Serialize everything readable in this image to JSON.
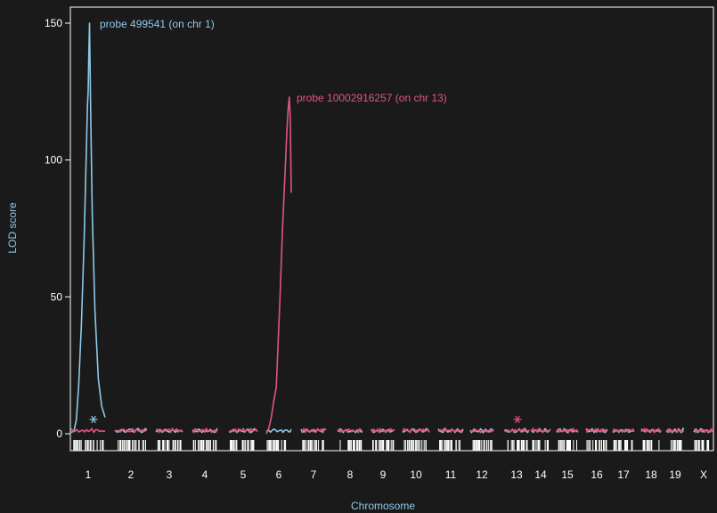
{
  "chart_data": {
    "type": "line",
    "xlabel": "Chromosome",
    "ylabel": "LOD score",
    "ylim": [
      -3,
      155
    ],
    "yticks": [
      0,
      50,
      100,
      150
    ],
    "chromosomes": [
      "1",
      "2",
      "3",
      "4",
      "5",
      "6",
      "7",
      "8",
      "9",
      "10",
      "11",
      "12",
      "13",
      "14",
      "15",
      "16",
      "17",
      "18",
      "19",
      "X"
    ],
    "series": [
      {
        "color": "#8ec8e8",
        "annotation": "probe 499541 (on chr 1)",
        "peak": {
          "chr": "1",
          "value": 150
        },
        "marker_chr": "1",
        "peak_points": [
          [
            0,
            0.5
          ],
          [
            0.08,
            1
          ],
          [
            0.15,
            5
          ],
          [
            0.22,
            18
          ],
          [
            0.3,
            40
          ],
          [
            0.38,
            70
          ],
          [
            0.44,
            100
          ],
          [
            0.48,
            120
          ],
          [
            0.5,
            125
          ],
          [
            0.52,
            140
          ],
          [
            0.54,
            150
          ],
          [
            0.57,
            120
          ],
          [
            0.62,
            80
          ],
          [
            0.7,
            45
          ],
          [
            0.8,
            20
          ],
          [
            0.9,
            10
          ],
          [
            1,
            6
          ]
        ]
      },
      {
        "color": "#e05580",
        "annotation": "probe 10002916257 (on chr 13)",
        "peak": {
          "chr": "6",
          "value": 123
        },
        "marker_chr": "13",
        "peak_points": [
          [
            0,
            0
          ],
          [
            0.1,
            2
          ],
          [
            0.2,
            6
          ],
          [
            0.3,
            12
          ],
          [
            0.4,
            17
          ],
          [
            0.45,
            28
          ],
          [
            0.55,
            50
          ],
          [
            0.65,
            75
          ],
          [
            0.75,
            95
          ],
          [
            0.82,
            110
          ],
          [
            0.87,
            118
          ],
          [
            0.92,
            123
          ],
          [
            0.96,
            115
          ],
          [
            1,
            88
          ]
        ]
      }
    ]
  }
}
